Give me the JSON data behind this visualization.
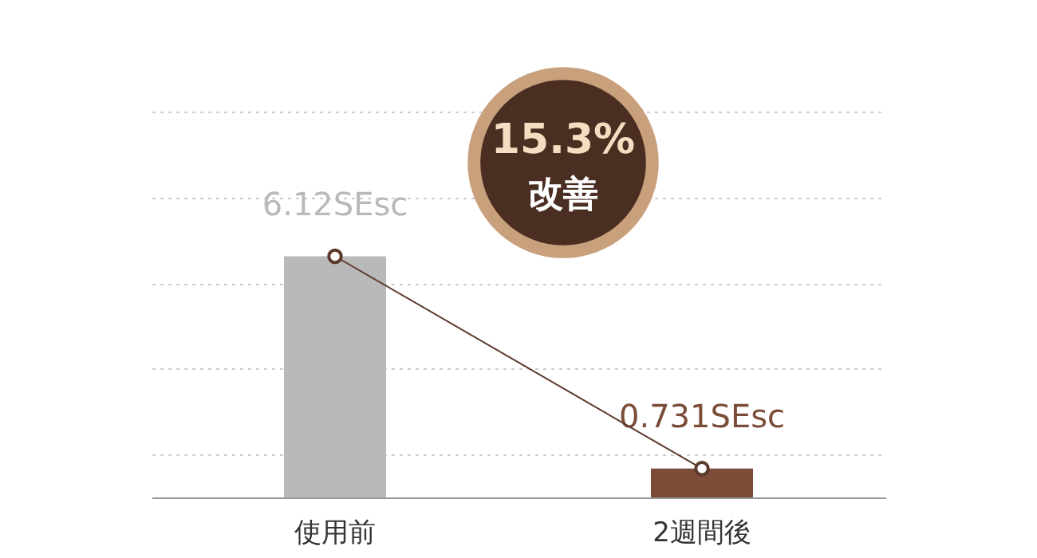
{
  "chart_data": {
    "type": "bar",
    "categories": [
      "使用前",
      "2週間後"
    ],
    "grid": "y",
    "series": [
      {
        "colors": [
          "#b9b9b9",
          "#7b4c38"
        ],
        "values": [
          6.12,
          0.731
        ],
        "value_labels": [
          "6.12SEsc",
          "0.731SEsc"
        ]
      },
      {
        "type": "line",
        "color": "#5a3a2c",
        "values": [
          6.12,
          0.731
        ],
        "marker": "circle"
      }
    ],
    "annotations": [
      "15.3%",
      "改善"
    ]
  }
}
